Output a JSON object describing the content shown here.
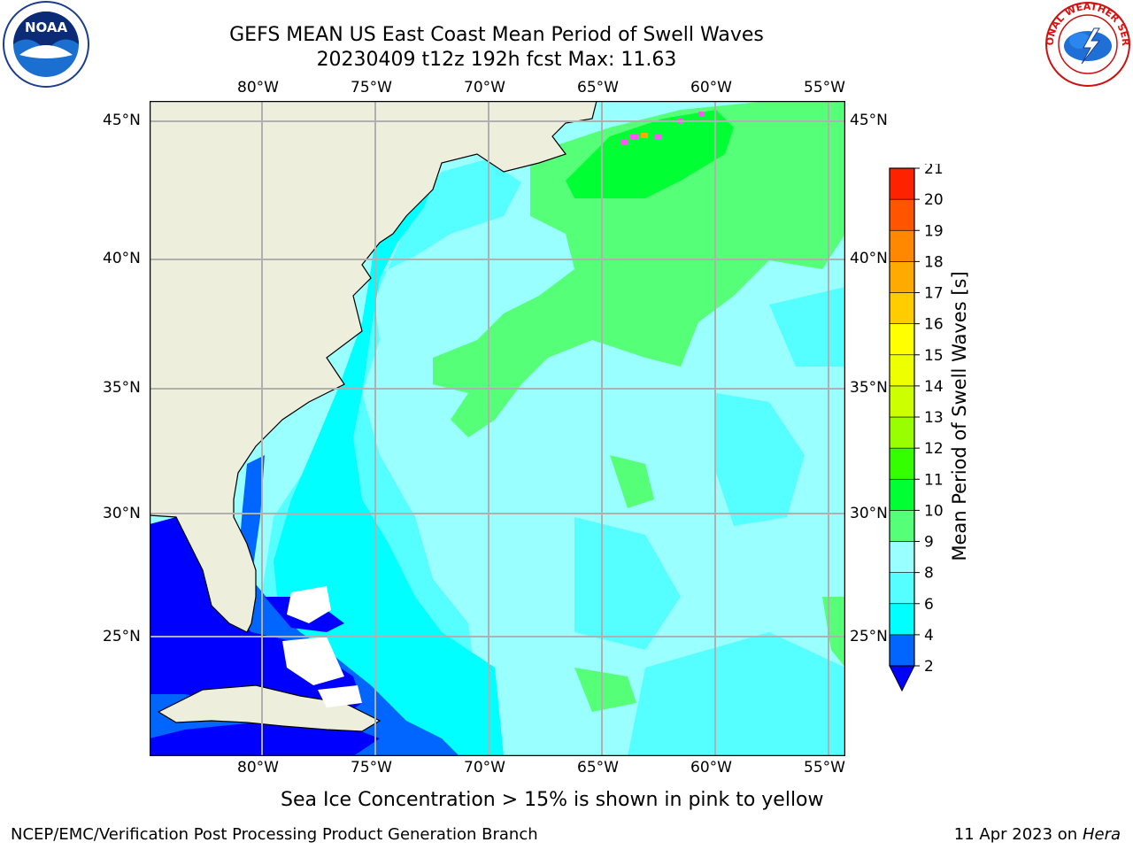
{
  "header": {
    "title_line1": "GEFS MEAN US East Coast Mean Period of Swell Waves",
    "title_line2": "20230409 t12z 192h fcst   Max: 11.63"
  },
  "logos": {
    "left": "NOAA",
    "right": "NATIONAL WEATHER SERVICE"
  },
  "map": {
    "lon_labels": [
      "80°W",
      "75°W",
      "70°W",
      "65°W",
      "60°W",
      "55°W"
    ],
    "lat_labels": [
      "45°N",
      "40°N",
      "35°N",
      "30°N",
      "25°N"
    ],
    "colors": {
      "land": "#eeeedd",
      "deep_blue": "#0000ff",
      "blue": "#0066ff",
      "cyan": "#00ffff",
      "light_cyan": "#55ffff",
      "pale_cyan": "#99ffff",
      "light_green": "#55ff77",
      "green": "#00ff33"
    }
  },
  "colorbar": {
    "label": "Mean Period of Swell Waves [s]",
    "ticks": [
      "2",
      "4",
      "6",
      "8",
      "9",
      "10",
      "11",
      "12",
      "13",
      "14",
      "15",
      "16",
      "17",
      "18",
      "19",
      "20",
      "21"
    ],
    "bin_colors": [
      "#0066ff",
      "#00ffff",
      "#55ffff",
      "#99ffff",
      "#55ff77",
      "#00ff33",
      "#33ff00",
      "#99ff00",
      "#ccff00",
      "#eeff00",
      "#ffff00",
      "#ffcc00",
      "#ffaa00",
      "#ff8800",
      "#ff5500",
      "#ff2200"
    ],
    "under_color": "#0000ff"
  },
  "caption": "Sea Ice Concentration > 15% is shown in pink to yellow",
  "footer": {
    "left": "NCEP/EMC/Verification Post Processing Product Generation Branch",
    "right_date": "11 Apr 2023 on ",
    "right_host": "Hera"
  }
}
